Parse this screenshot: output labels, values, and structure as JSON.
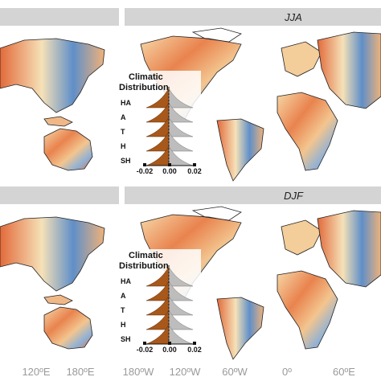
{
  "panels": [
    {
      "title": "JJA",
      "inset": {
        "title_lines": [
          "Climatic",
          "Distribution"
        ],
        "rows": [
          "HA",
          "A",
          "T",
          "H",
          "SH"
        ],
        "ticks": [
          "-0.02",
          "0.00",
          "0.02"
        ]
      }
    },
    {
      "title": "DJF",
      "inset": {
        "title_lines": [
          "Climatic",
          "Distribution"
        ],
        "rows": [
          "HA",
          "A",
          "T",
          "H",
          "SH"
        ],
        "ticks": [
          "-0.02",
          "0.00",
          "0.02"
        ]
      }
    }
  ],
  "x_axis_labels": [
    "120ºE",
    "180ºE",
    "180ºW",
    "120ºW",
    "60ºW",
    "0º",
    "60ºE"
  ]
}
